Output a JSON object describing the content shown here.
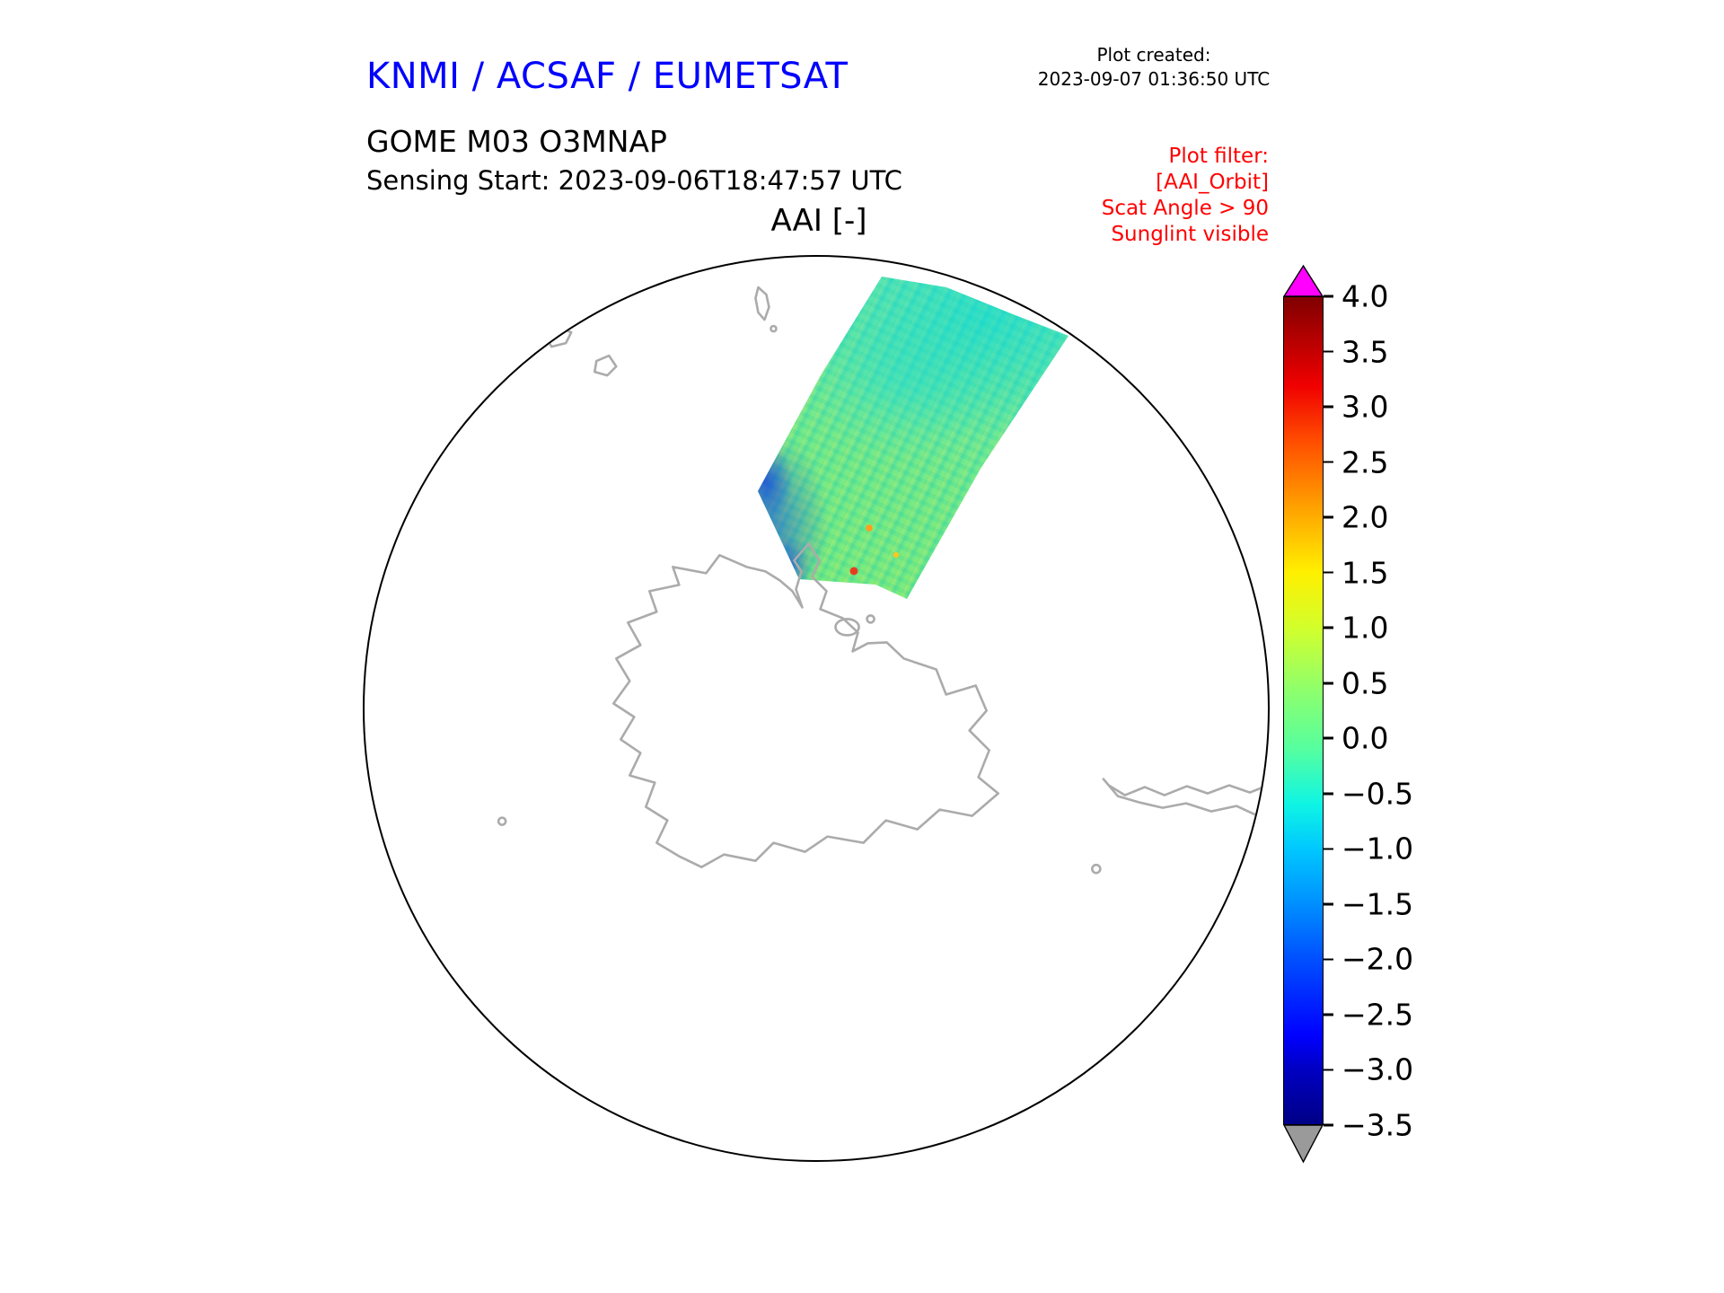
{
  "header": {
    "title": "KNMI / ACSAF / EUMETSAT",
    "title_color": "#0000ff",
    "plot_created_label": "Plot created:",
    "plot_created_value": "2023-09-07 01:36:50 UTC",
    "product_line1": "GOME M03 O3MNAP",
    "product_line2": "Sensing Start: 2023-09-06T18:47:57 UTC",
    "filter": {
      "color": "#ff0000",
      "lines": [
        "Plot filter:",
        "[AAI_Orbit]",
        "Scat Angle > 90",
        "Sunglint visible"
      ]
    }
  },
  "chart_data": {
    "type": "heatmap",
    "title": "AAI [-]",
    "variable": "Absorbing Aerosol Index (dimensionless)",
    "instrument_product": "GOME M03 O3MNAP",
    "projection": "South polar stereographic view centered on Antarctica, circular map frame",
    "coastline_color": "#ababab",
    "map_outline_color": "#000000",
    "colorbar": {
      "min": -3.5,
      "max": 4.0,
      "tick_step": 0.5,
      "tick_labels": [
        "4.0",
        "3.5",
        "3.0",
        "2.5",
        "2.0",
        "1.5",
        "1.0",
        "0.5",
        "0.0",
        "−0.5",
        "−1.0",
        "−1.5",
        "−2.0",
        "−2.5",
        "−3.0",
        "−3.5"
      ],
      "over_arrow_color": "#ff00ff",
      "under_arrow_color": "#9a9a9a",
      "gradient_stops": [
        {
          "value": -3.5,
          "color": "#000086"
        },
        {
          "value": -3.0,
          "color": "#0000c3"
        },
        {
          "value": -2.7,
          "color": "#0000ff"
        },
        {
          "value": -2.0,
          "color": "#0050ff"
        },
        {
          "value": -1.5,
          "color": "#0090ff"
        },
        {
          "value": -1.0,
          "color": "#00c8ff"
        },
        {
          "value": -0.6,
          "color": "#0ff5e4"
        },
        {
          "value": -0.1,
          "color": "#55ffa0"
        },
        {
          "value": 0.4,
          "color": "#8aff70"
        },
        {
          "value": 1.0,
          "color": "#d2ff2c"
        },
        {
          "value": 1.5,
          "color": "#fff000"
        },
        {
          "value": 2.1,
          "color": "#ffa000"
        },
        {
          "value": 2.7,
          "color": "#ff4c00"
        },
        {
          "value": 3.2,
          "color": "#f00000"
        },
        {
          "value": 4.0,
          "color": "#800000"
        }
      ]
    },
    "swath": {
      "description": "Single satellite orbit swath entering the circular map at the top (north edge) and extending south-west toward the Antarctic Peninsula",
      "dominant_values": "mostly between -1.0 and +1.0 AAI (cyan to green mottled field)",
      "features": [
        "cyan/turquoise patch near the northern end of the swath",
        "cluster of dark blue pixels (AAI < -1.5) along the south-western swath edge near the Antarctic Peninsula",
        "a few isolated orange/red pixels (AAI > 1.5) near the southern end of the swath"
      ]
    }
  }
}
